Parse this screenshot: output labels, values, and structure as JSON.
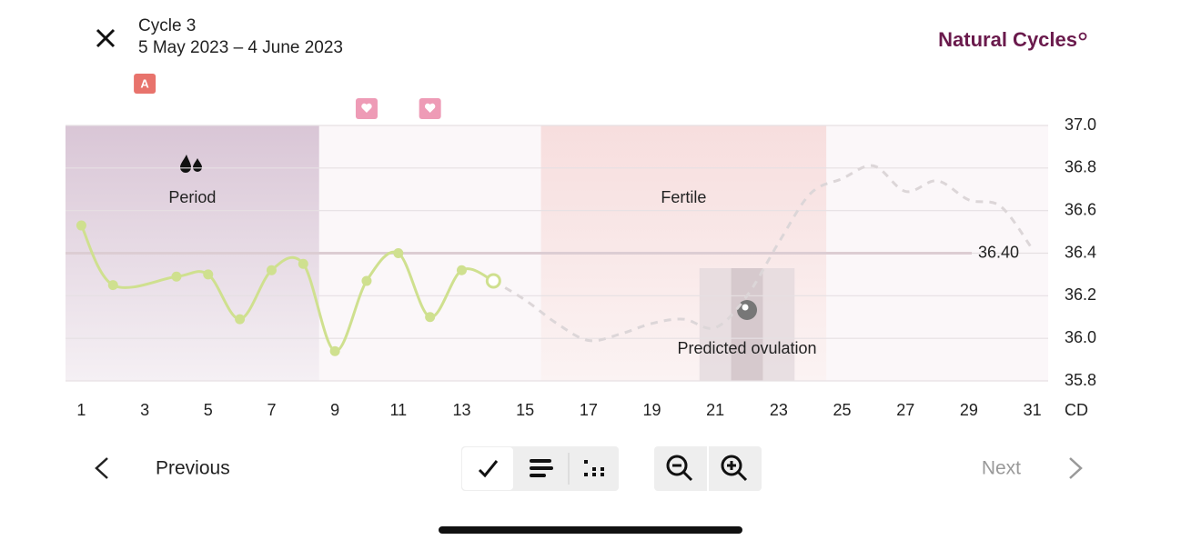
{
  "header": {
    "title": "Cycle 3",
    "subtitle": "5 May 2023 – 4 June 2023",
    "brand": "Natural Cycles"
  },
  "chart_data": {
    "type": "line",
    "xlim": [
      0.5,
      31.5
    ],
    "xticks": [
      1,
      3,
      5,
      7,
      9,
      11,
      13,
      15,
      17,
      19,
      21,
      23,
      25,
      27,
      29,
      31
    ],
    "xlabel": "CD",
    "ylim": [
      35.8,
      37.0
    ],
    "yticks": [
      35.8,
      {
        "value": 36,
        "label": "36.0"
      },
      36.2,
      36.4,
      36.6,
      36.8,
      {
        "value": 37,
        "label": "37.0"
      }
    ],
    "grid": true,
    "series": [
      {
        "color": "#cfe08f",
        "style": "solid",
        "x": [
          1,
          2,
          4,
          5,
          6,
          7,
          8,
          9,
          10,
          11,
          12,
          13,
          14
        ],
        "values": [
          36.53,
          36.25,
          36.29,
          36.3,
          36.09,
          36.32,
          36.35,
          35.94,
          36.27,
          36.4,
          36.1,
          36.32,
          36.27
        ]
      },
      {
        "color": "#dcd6d8",
        "style": "dashed",
        "x": [
          14,
          15,
          16,
          17,
          18,
          19,
          20,
          21,
          22,
          23,
          24,
          25,
          26,
          27,
          28,
          29,
          30,
          31
        ],
        "values": [
          36.27,
          36.18,
          36.07,
          35.99,
          36.02,
          36.07,
          36.09,
          36.05,
          36.2,
          36.45,
          36.68,
          36.75,
          36.81,
          36.69,
          36.74,
          36.65,
          36.62,
          36.42
        ]
      }
    ],
    "coverline": {
      "value": 36.4,
      "label": "36.40"
    },
    "phases": [
      {
        "label": "Period",
        "start": 1,
        "end": 8
      },
      {
        "label": "Fertile",
        "start": 16,
        "end": 24
      },
      {
        "label": "Predicted ovulation",
        "start": 21,
        "end": 23,
        "day": 22
      }
    ],
    "badge": {
      "label": "A",
      "day": 3
    },
    "heart_days": [
      10,
      12
    ]
  },
  "footer": {
    "previous": "Previous",
    "next": "Next"
  }
}
